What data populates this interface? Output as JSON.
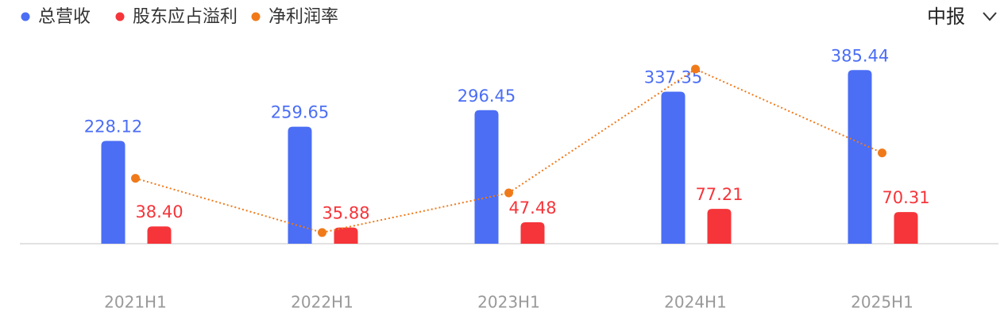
{
  "chart_data": {
    "type": "bar-line",
    "period_selector": "中报",
    "categories": [
      "2021H1",
      "2022H1",
      "2023H1",
      "2024H1",
      "2025H1"
    ],
    "series": [
      {
        "name": "总营收",
        "color": "#4b6ef5",
        "type": "bar",
        "values": [
          228.12,
          259.65,
          296.45,
          337.35,
          385.44
        ],
        "value_labels": [
          "228.12",
          "259.65",
          "296.45",
          "337.35",
          "385.44"
        ]
      },
      {
        "name": "股东应占溢利",
        "color": "#f5353a",
        "type": "bar",
        "values": [
          38.4,
          35.88,
          47.48,
          77.21,
          70.31
        ],
        "value_labels": [
          "38.40",
          "35.88",
          "47.48",
          "77.21",
          "70.31"
        ]
      },
      {
        "name": "净利润率",
        "color": "#f07a1a",
        "type": "line",
        "axis": "y2",
        "values": [
          16.83,
          13.82,
          16.02,
          22.89,
          18.24
        ]
      }
    ],
    "ylim": [
      0,
      400
    ],
    "y2lim": [
      13.2,
      23.2
    ]
  }
}
